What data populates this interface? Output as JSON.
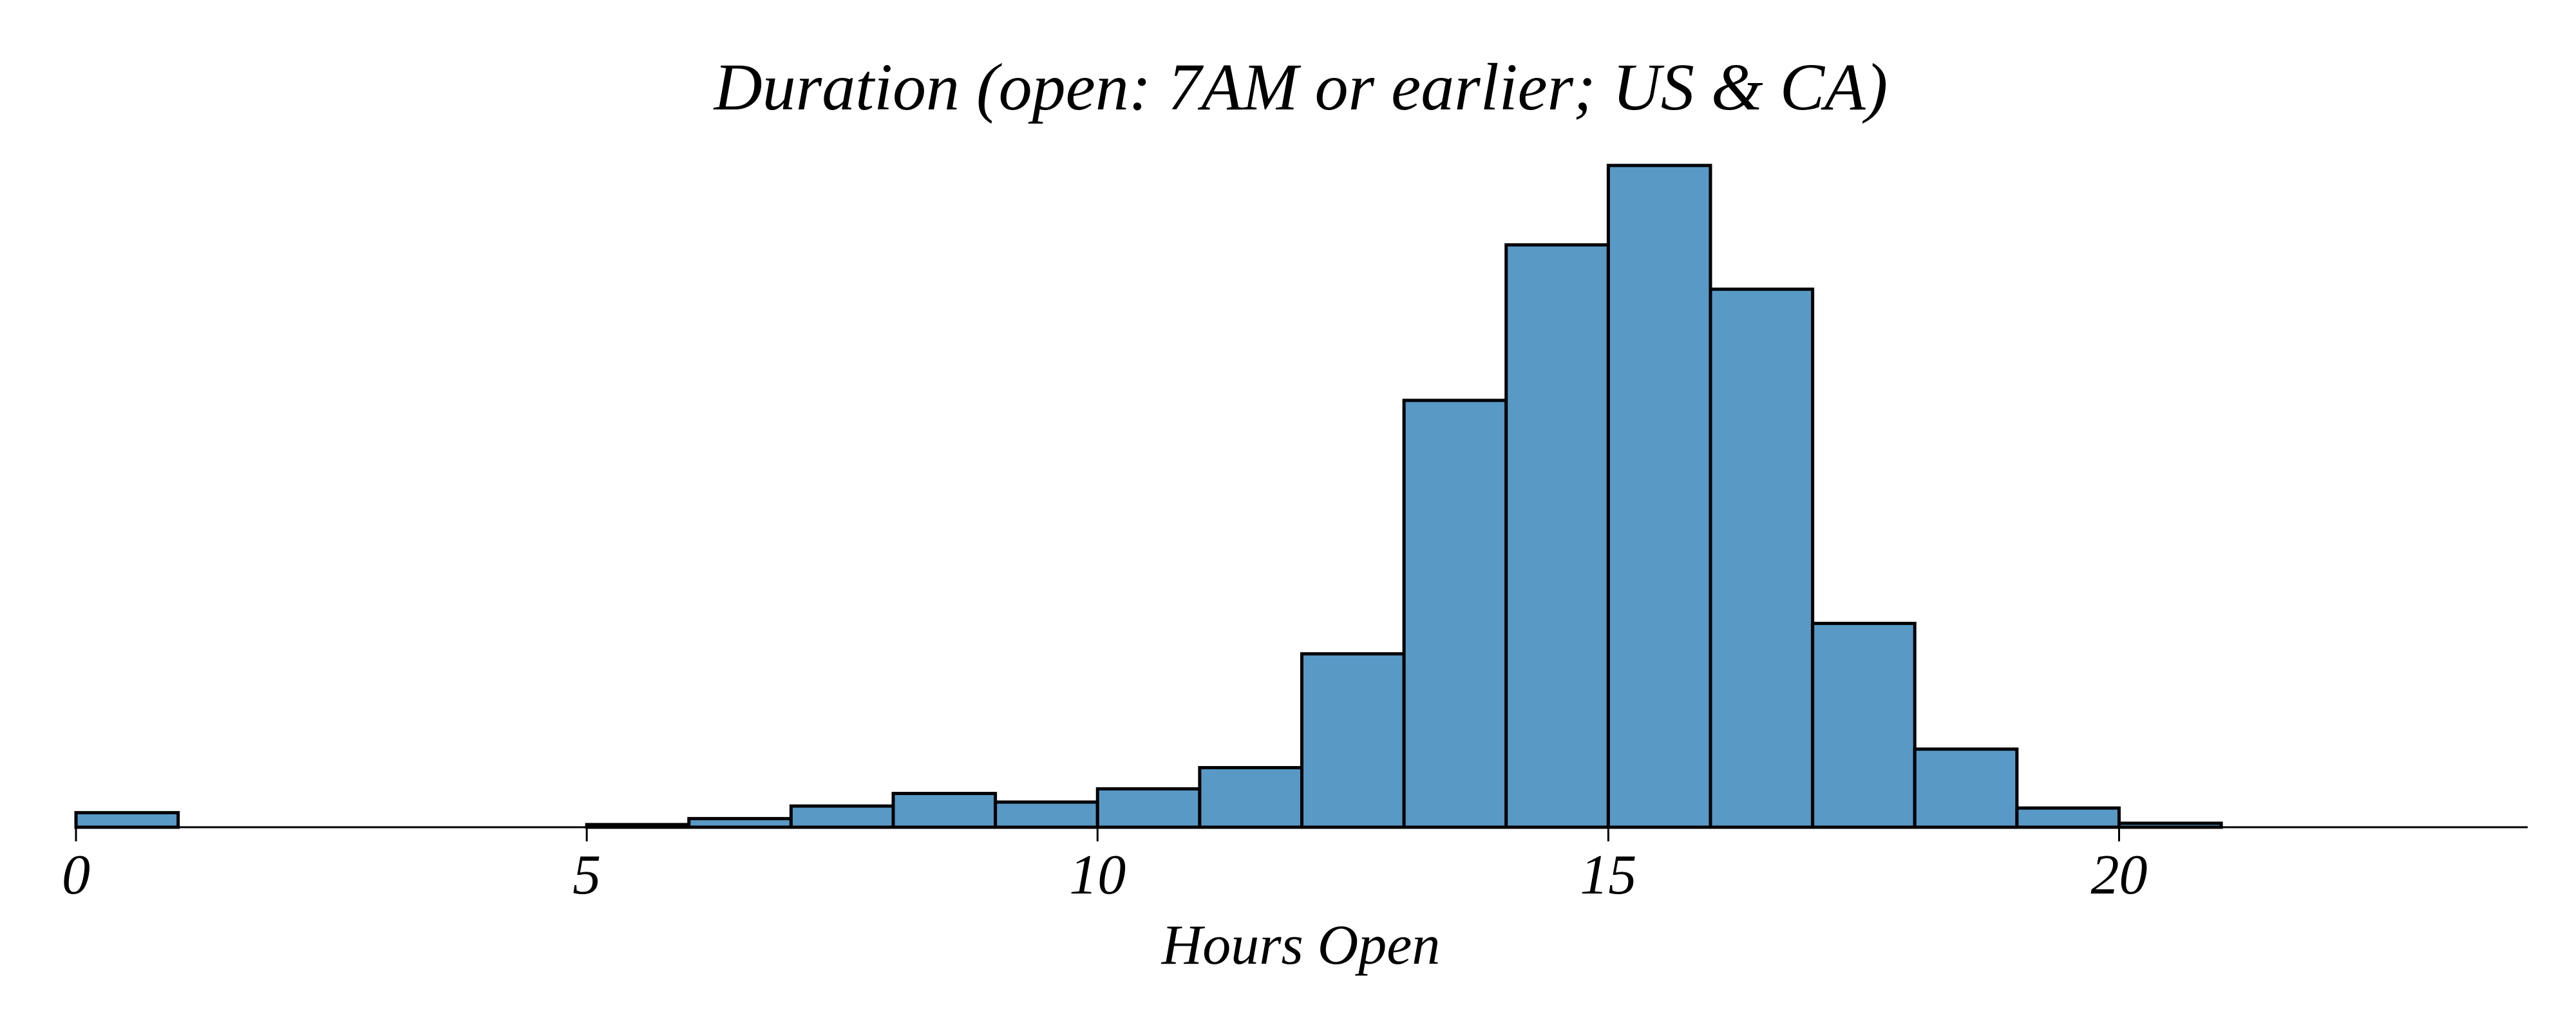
{
  "chart_data": {
    "type": "bar",
    "title": "Duration (open: 7AM or earlier; US & CA)",
    "xlabel": "Hours Open",
    "ylabel": "",
    "xlim": [
      0,
      24
    ],
    "ylim": [
      0,
      100
    ],
    "bin_width": 1,
    "bins": [
      0,
      1,
      2,
      3,
      4,
      5,
      6,
      7,
      8,
      9,
      10,
      11,
      12,
      13,
      14,
      15,
      16,
      17,
      18,
      19,
      20,
      21,
      22,
      23
    ],
    "values": [
      2.2,
      0,
      0,
      0,
      0,
      0.4,
      1.3,
      3.2,
      5.1,
      3.8,
      5.8,
      9.0,
      26.2,
      64.5,
      88.0,
      100.0,
      81.3,
      30.8,
      11.8,
      2.9,
      0.6,
      0,
      0,
      0
    ],
    "xticks": [
      0,
      5,
      10,
      15,
      20
    ],
    "xtick_labels": [
      "0",
      "5",
      "10",
      "15",
      "20"
    ],
    "grid": false,
    "legend": "none",
    "bar_color": "#5899c6",
    "edge_color": "#000000"
  }
}
